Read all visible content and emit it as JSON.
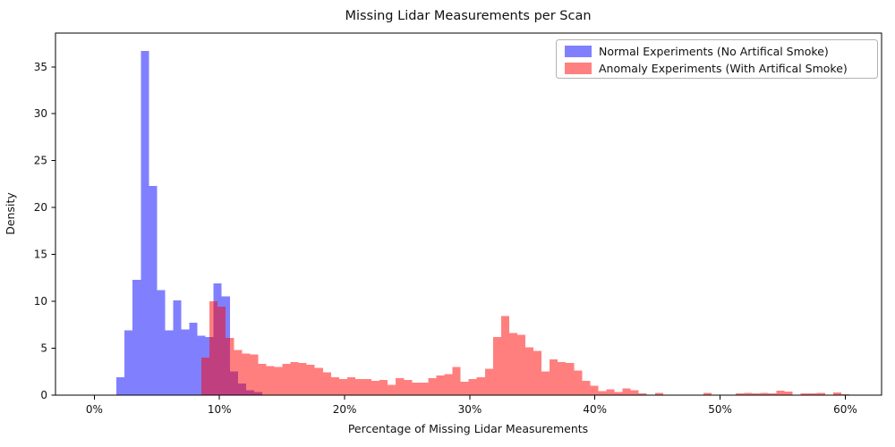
{
  "title": "Missing Lidar Measurements per Scan",
  "colors": {
    "normal_fill": "#8080ff",
    "anomaly_fill_rgba": "rgba(255,0,0,0.5)",
    "anomaly_legend_fill": "#ff8080",
    "overlap_observed": "#bf4080",
    "axis_line": "#000000",
    "legend_border": "#b3b3b3"
  },
  "chart_data": {
    "type": "bar",
    "subtype": "histogram-overlaid",
    "title": "Missing Lidar Measurements per Scan",
    "xlabel": "Percentage of Missing Lidar Measurements",
    "ylabel": "Density",
    "xlim": [
      -3.1,
      62.9
    ],
    "ylim": [
      0,
      38.6
    ],
    "grid": false,
    "x_ticks": [
      {
        "value": 0,
        "label": "0%"
      },
      {
        "value": 10,
        "label": "10%"
      },
      {
        "value": 20,
        "label": "20%"
      },
      {
        "value": 30,
        "label": "30%"
      },
      {
        "value": 40,
        "label": "40%"
      },
      {
        "value": 50,
        "label": "50%"
      },
      {
        "value": 60,
        "label": "60%"
      }
    ],
    "y_ticks": [
      {
        "value": 0,
        "label": "0"
      },
      {
        "value": 5,
        "label": "5"
      },
      {
        "value": 10,
        "label": "10"
      },
      {
        "value": 15,
        "label": "15"
      },
      {
        "value": 20,
        "label": "20"
      },
      {
        "value": 25,
        "label": "25"
      },
      {
        "value": 30,
        "label": "30"
      },
      {
        "value": 35,
        "label": "35"
      }
    ],
    "legend": {
      "position": "upper right"
    },
    "series": [
      {
        "name": "Normal Experiments (No Artifical Smoke)",
        "color": "#8080ff",
        "legend_color": "#8080ff",
        "bin_start_percent": 1.77,
        "bin_width_percent": 0.647,
        "values": [
          1.9,
          6.9,
          12.3,
          36.7,
          22.3,
          11.2,
          6.9,
          10.1,
          7.0,
          7.7,
          6.3,
          6.2,
          11.9,
          10.5,
          2.5,
          1.2,
          0.5,
          0.3
        ]
      },
      {
        "name": "Anomaly Experiments (With Artifical Smoke)",
        "color": "rgba(255,0,0,0.5)",
        "legend_color": "#ff8080",
        "bin_start_percent": 8.56,
        "bin_width_percent": 0.647,
        "values": [
          4.0,
          10.0,
          9.4,
          6.1,
          4.8,
          4.4,
          4.3,
          3.3,
          3.1,
          3.0,
          3.3,
          3.5,
          3.4,
          3.2,
          2.9,
          2.4,
          1.9,
          1.7,
          1.9,
          1.7,
          1.7,
          1.5,
          1.6,
          1.1,
          1.8,
          1.6,
          1.3,
          1.3,
          1.8,
          2.1,
          2.2,
          3.0,
          1.4,
          1.7,
          1.9,
          2.8,
          6.2,
          8.4,
          6.6,
          6.4,
          5.1,
          4.7,
          2.5,
          3.8,
          3.5,
          3.4,
          2.6,
          1.5,
          1.0,
          0.4,
          0.6,
          0.3,
          0.7,
          0.5,
          0.15,
          0,
          0.2,
          0,
          0,
          0,
          0,
          0,
          0.2,
          0,
          0,
          0,
          0.15,
          0.2,
          0.15,
          0.2,
          0.15,
          0.45,
          0.35,
          0,
          0.15,
          0.15,
          0.2,
          0,
          0.25,
          0.1
        ]
      }
    ]
  }
}
